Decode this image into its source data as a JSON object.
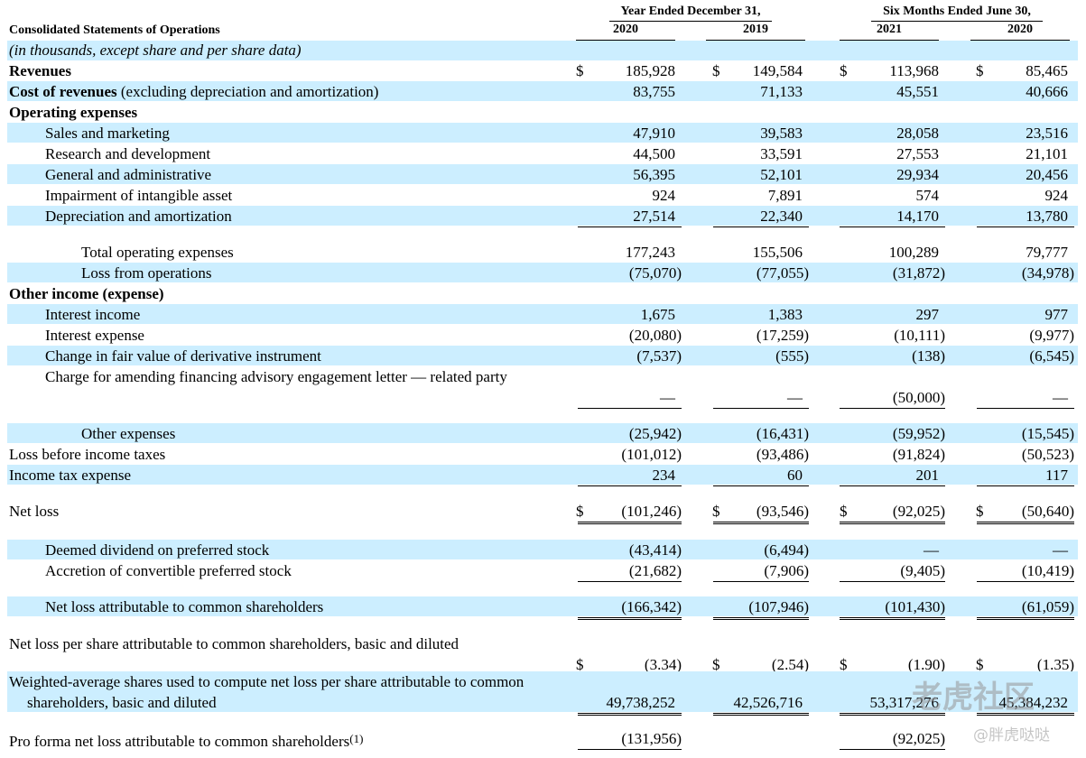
{
  "header": {
    "title": "Consolidated Statements of Operations",
    "subtitle": "(in thousands, except share and per share data)",
    "groups": [
      {
        "label": "Year Ended December 31,",
        "years": [
          "2020",
          "2019"
        ]
      },
      {
        "label": "Six Months Ended June 30,",
        "years": [
          "2021",
          "2020"
        ]
      }
    ]
  },
  "rows": [
    {
      "label": "Revenues",
      "bold": true,
      "prefix": [
        "$",
        "$",
        "$",
        "$"
      ],
      "values": [
        "185,928",
        "149,584",
        "113,968",
        "85,465"
      ]
    },
    {
      "label": "Cost of revenues",
      "label_note": "(excluding depreciation and amortization)",
      "bold": true,
      "shaded": true,
      "values": [
        "83,755",
        "71,133",
        "45,551",
        "40,666"
      ]
    },
    {
      "label": "Operating expenses",
      "bold": true
    },
    {
      "label": "Sales and marketing",
      "indent": 1,
      "shaded": true,
      "values": [
        "47,910",
        "39,583",
        "28,058",
        "23,516"
      ]
    },
    {
      "label": "Research and development",
      "indent": 1,
      "values": [
        "44,500",
        "33,591",
        "27,553",
        "21,101"
      ]
    },
    {
      "label": "General and administrative",
      "indent": 1,
      "shaded": true,
      "values": [
        "56,395",
        "52,101",
        "29,934",
        "20,456"
      ]
    },
    {
      "label": "Impairment of intangible asset",
      "indent": 1,
      "values": [
        "924",
        "7,891",
        "574",
        "924"
      ]
    },
    {
      "label": "Depreciation and amortization",
      "indent": 1,
      "shaded": true,
      "rule": "single",
      "values": [
        "27,514",
        "22,340",
        "14,170",
        "13,780"
      ]
    },
    {
      "label": "Total operating expenses",
      "indent": 2,
      "values": [
        "177,243",
        "155,506",
        "100,289",
        "79,777"
      ]
    },
    {
      "label": "Loss from operations",
      "indent": 2,
      "shaded": true,
      "values": [
        "(75,070)",
        "(77,055)",
        "(31,872)",
        "(34,978)"
      ]
    },
    {
      "label": "Other income (expense)",
      "bold": true
    },
    {
      "label": "Interest income",
      "indent": 1,
      "shaded": true,
      "values": [
        "1,675",
        "1,383",
        "297",
        "977"
      ]
    },
    {
      "label": "Interest expense",
      "indent": 1,
      "values": [
        "(20,080)",
        "(17,259)",
        "(10,111)",
        "(9,977)"
      ]
    },
    {
      "label": "Change in fair value of derivative instrument",
      "indent": 1,
      "shaded": true,
      "values": [
        "(7,537)",
        "(555)",
        "(138)",
        "(6,545)"
      ]
    },
    {
      "label": "Charge for amending financing advisory engagement letter — related party",
      "indent": 1,
      "rule": "single",
      "values": [
        "—",
        "—",
        "(50,000)",
        "—"
      ]
    },
    {
      "label": "Other expenses",
      "indent": 2,
      "shaded": true,
      "values": [
        "(25,942)",
        "(16,431)",
        "(59,952)",
        "(15,545)"
      ]
    },
    {
      "label": "Loss before income taxes",
      "values": [
        "(101,012)",
        "(93,486)",
        "(91,824)",
        "(50,523)"
      ]
    },
    {
      "label": "Income tax expense",
      "shaded": true,
      "rule": "single",
      "values": [
        "234",
        "60",
        "201",
        "117"
      ]
    },
    {
      "label": "Net loss",
      "rule": "double",
      "prefix": [
        "$",
        "$",
        "$",
        "$"
      ],
      "values": [
        "(101,246)",
        "(93,546)",
        "(92,025)",
        "(50,640)"
      ]
    },
    {
      "label": "Deemed dividend on preferred stock",
      "indent": 1,
      "shaded": true,
      "values": [
        "(43,414)",
        "(6,494)",
        "—",
        "—"
      ]
    },
    {
      "label": "Accretion of convertible preferred stock",
      "indent": 1,
      "rule": "single",
      "values": [
        "(21,682)",
        "(7,906)",
        "(9,405)",
        "(10,419)"
      ]
    },
    {
      "label": "Net loss attributable to common shareholders",
      "indent": 1,
      "shaded": true,
      "rule": "double",
      "values": [
        "(166,342)",
        "(107,946)",
        "(101,430)",
        "(61,059)"
      ]
    },
    {
      "label": "Net loss per share attributable to common shareholders, basic and diluted",
      "rule": "double",
      "prefix": [
        "$",
        "$",
        "$",
        "$"
      ],
      "values": [
        "(3.34)",
        "(2.54)",
        "(1.90)",
        "(1.35)"
      ]
    },
    {
      "label": "Weighted-average shares used to compute net loss per share attributable to common shareholders, basic and diluted",
      "shaded": true,
      "rule": "double",
      "values": [
        "49,738,252",
        "42,526,716",
        "53,317,276",
        "45,384,232"
      ]
    },
    {
      "label": "Pro forma net loss attributable to common shareholders",
      "footnote": "(1)",
      "rule": "single",
      "values": [
        "(131,956)",
        null,
        "(92,025)",
        null
      ]
    }
  ],
  "watermark": {
    "brand": "老虎社区",
    "user": "@胖虎哒哒"
  }
}
